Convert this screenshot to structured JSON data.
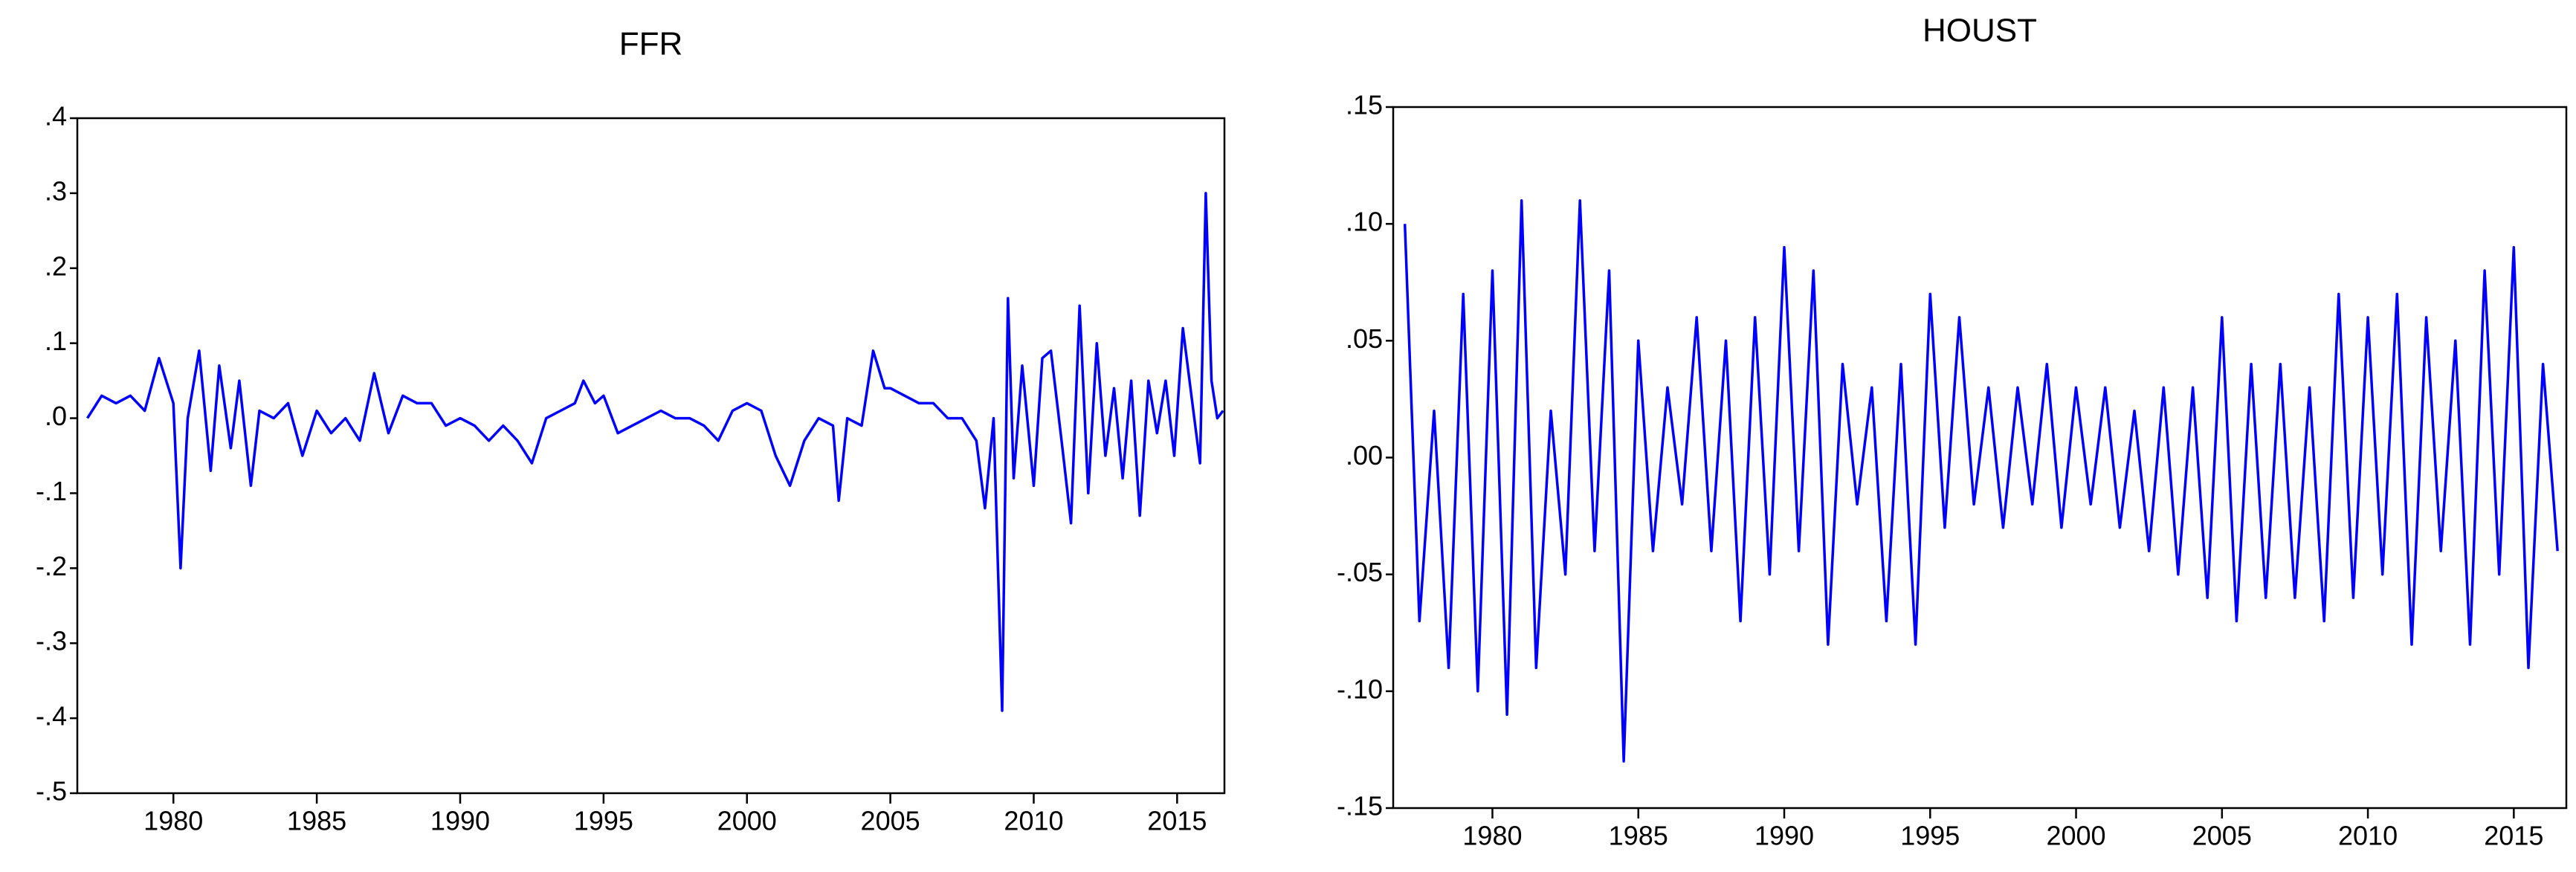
{
  "chart_data": [
    {
      "type": "line",
      "title": "FFR",
      "x": [
        1977,
        1977.5,
        1978,
        1978.5,
        1979,
        1979.5,
        1980,
        1980.25,
        1980.5,
        1980.9,
        1981.3,
        1981.6,
        1982,
        1982.3,
        1982.7,
        1983,
        1983.5,
        1984,
        1984.5,
        1985,
        1985.5,
        1986,
        1986.5,
        1987,
        1987.5,
        1988,
        1988.5,
        1989,
        1989.5,
        1990,
        1990.5,
        1991,
        1991.5,
        1992,
        1992.5,
        1993,
        1993.5,
        1994,
        1994.3,
        1994.7,
        1995,
        1995.5,
        1996,
        1996.5,
        1997,
        1997.5,
        1998,
        1998.5,
        1999,
        1999.5,
        2000,
        2000.5,
        2001,
        2001.5,
        2002,
        2002.5,
        2003,
        2003.2,
        2003.5,
        2004,
        2004.4,
        2004.8,
        2005,
        2005.5,
        2006,
        2006.5,
        2007,
        2007.5,
        2008,
        2008.3,
        2008.6,
        2008.9,
        2009.1,
        2009.3,
        2009.6,
        2010,
        2010.3,
        2010.6,
        2011,
        2011.3,
        2011.6,
        2011.9,
        2012.2,
        2012.5,
        2012.8,
        2013.1,
        2013.4,
        2013.7,
        2014,
        2014.3,
        2014.6,
        2014.9,
        2015.2,
        2015.5,
        2015.8,
        2016,
        2016.2,
        2016.4,
        2016.6
      ],
      "series": [
        {
          "color": "#0000ff",
          "values": [
            0,
            0.03,
            0.02,
            0.03,
            0.01,
            0.08,
            0.02,
            -0.2,
            0,
            0.09,
            -0.07,
            0.07,
            -0.04,
            0.05,
            -0.09,
            0.01,
            0,
            0.02,
            -0.05,
            0.01,
            -0.02,
            0,
            -0.03,
            0.06,
            -0.02,
            0.03,
            0.02,
            0.02,
            -0.01,
            0,
            -0.01,
            -0.03,
            -0.01,
            -0.03,
            -0.06,
            0,
            0.01,
            0.02,
            0.05,
            0.02,
            0.03,
            -0.02,
            -0.01,
            0,
            0.01,
            0,
            0,
            -0.01,
            -0.03,
            0.01,
            0.02,
            0.01,
            -0.05,
            -0.09,
            -0.03,
            0,
            -0.01,
            -0.11,
            0,
            -0.01,
            0.09,
            0.04,
            0.04,
            0.03,
            0.02,
            0.02,
            0,
            0,
            -0.03,
            -0.12,
            0,
            -0.39,
            0.16,
            -0.08,
            0.07,
            -0.09,
            0.08,
            0.09,
            -0.04,
            -0.14,
            0.15,
            -0.1,
            0.1,
            -0.05,
            0.04,
            -0.08,
            0.05,
            -0.13,
            0.05,
            -0.02,
            0.05,
            -0.05,
            0.12,
            0.03,
            -0.06,
            0.3,
            0.05,
            0,
            0.01
          ]
        }
      ],
      "xlim": [
        1976.65,
        2016.65
      ],
      "xticks": [
        1980,
        1985,
        1990,
        1995,
        2000,
        2005,
        2010,
        2015
      ],
      "ylim": [
        -0.5,
        0.4
      ],
      "yticks": [
        {
          "value": -0.5,
          "label": "-.5"
        },
        {
          "value": -0.4,
          "label": "-.4"
        },
        {
          "value": -0.3,
          "label": "-.3"
        },
        {
          "value": -0.2,
          "label": "-.2"
        },
        {
          "value": -0.1,
          "label": "-.1"
        },
        {
          "value": 0,
          "label": ".0"
        },
        {
          "value": 0.1,
          "label": ".1"
        },
        {
          "value": 0.2,
          "label": ".2"
        },
        {
          "value": 0.3,
          "label": ".3"
        },
        {
          "value": 0.4,
          "label": ".4"
        }
      ]
    },
    {
      "type": "line",
      "title": "HOUST",
      "x": [
        1977,
        1977.5,
        1978,
        1978.5,
        1979,
        1979.5,
        1980,
        1980.5,
        1981,
        1981.5,
        1982,
        1982.5,
        1983,
        1983.5,
        1984,
        1984.5,
        1985,
        1985.5,
        1986,
        1986.5,
        1987,
        1987.5,
        1988,
        1988.5,
        1989,
        1989.5,
        1990,
        1990.5,
        1991,
        1991.5,
        1992,
        1992.5,
        1993,
        1993.5,
        1994,
        1994.5,
        1995,
        1995.5,
        1996,
        1996.5,
        1997,
        1997.5,
        1998,
        1998.5,
        1999,
        1999.5,
        2000,
        2000.5,
        2001,
        2001.5,
        2002,
        2002.5,
        2003,
        2003.5,
        2004,
        2004.5,
        2005,
        2005.5,
        2006,
        2006.5,
        2007,
        2007.5,
        2008,
        2008.5,
        2009,
        2009.5,
        2010,
        2010.5,
        2011,
        2011.5,
        2012,
        2012.5,
        2013,
        2013.5,
        2014,
        2014.5,
        2015,
        2015.5,
        2016,
        2016.5
      ],
      "series": [
        {
          "color": "#0000ff",
          "values": [
            0.1,
            -0.07,
            0.02,
            -0.09,
            0.07,
            -0.1,
            0.08,
            -0.11,
            0.11,
            -0.09,
            0.02,
            -0.05,
            0.11,
            -0.04,
            0.08,
            -0.13,
            0.05,
            -0.04,
            0.03,
            -0.02,
            0.06,
            -0.04,
            0.05,
            -0.07,
            0.06,
            -0.05,
            0.09,
            -0.04,
            0.08,
            -0.08,
            0.04,
            -0.02,
            0.03,
            -0.07,
            0.04,
            -0.08,
            0.07,
            -0.03,
            0.06,
            -0.02,
            0.03,
            -0.03,
            0.03,
            -0.02,
            0.04,
            -0.03,
            0.03,
            -0.02,
            0.03,
            -0.03,
            0.02,
            -0.04,
            0.03,
            -0.05,
            0.03,
            -0.06,
            0.06,
            -0.07,
            0.04,
            -0.06,
            0.04,
            -0.06,
            0.03,
            -0.07,
            0.07,
            -0.06,
            0.06,
            -0.05,
            0.07,
            -0.08,
            0.06,
            -0.04,
            0.05,
            -0.08,
            0.08,
            -0.05,
            0.09,
            -0.09,
            0.04,
            -0.04
          ]
        }
      ],
      "xlim": [
        1976.6,
        2016.8
      ],
      "xticks": [
        1980,
        1985,
        1990,
        1995,
        2000,
        2005,
        2010,
        2015
      ],
      "ylim": [
        -0.15,
        0.15
      ],
      "yticks": [
        {
          "value": -0.15,
          "label": "-.15"
        },
        {
          "value": -0.1,
          "label": "-.10"
        },
        {
          "value": -0.05,
          "label": "-.05"
        },
        {
          "value": 0,
          "label": ".00"
        },
        {
          "value": 0.05,
          "label": ".05"
        },
        {
          "value": 0.1,
          "label": ".10"
        },
        {
          "value": 0.15,
          "label": ".15"
        }
      ]
    }
  ]
}
